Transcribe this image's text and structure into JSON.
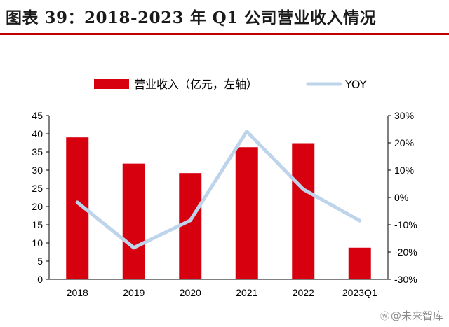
{
  "header": {
    "title": "图表 39：2018-2023 年 Q1 公司营业收入情况"
  },
  "watermark": {
    "text": "@未来智库"
  },
  "chart_data": {
    "type": "bar",
    "categories": [
      "2018",
      "2019",
      "2020",
      "2021",
      "2022",
      "2023Q1"
    ],
    "series": [
      {
        "name": "营业收入（亿元，左轴）",
        "type": "bar",
        "axis": "left",
        "color": "#d7000f",
        "values": [
          39.0,
          31.8,
          29.2,
          36.3,
          37.4,
          8.7
        ]
      },
      {
        "name": "YOY",
        "type": "line",
        "axis": "right",
        "color": "#bdd4ea",
        "values": [
          -1.8,
          -18.4,
          -8.4,
          24.2,
          3.0,
          -8.5
        ]
      }
    ],
    "y_left": {
      "min": 0,
      "max": 45,
      "step": 5,
      "ticks": [
        "0",
        "5",
        "10",
        "15",
        "20",
        "25",
        "30",
        "35",
        "40",
        "45"
      ]
    },
    "y_right": {
      "min": -30,
      "max": 30,
      "step": 10,
      "ticks": [
        "-30%",
        "-20%",
        "-10%",
        "0%",
        "10%",
        "20%",
        "30%"
      ]
    },
    "legend_position": "top-center",
    "grid": false
  }
}
